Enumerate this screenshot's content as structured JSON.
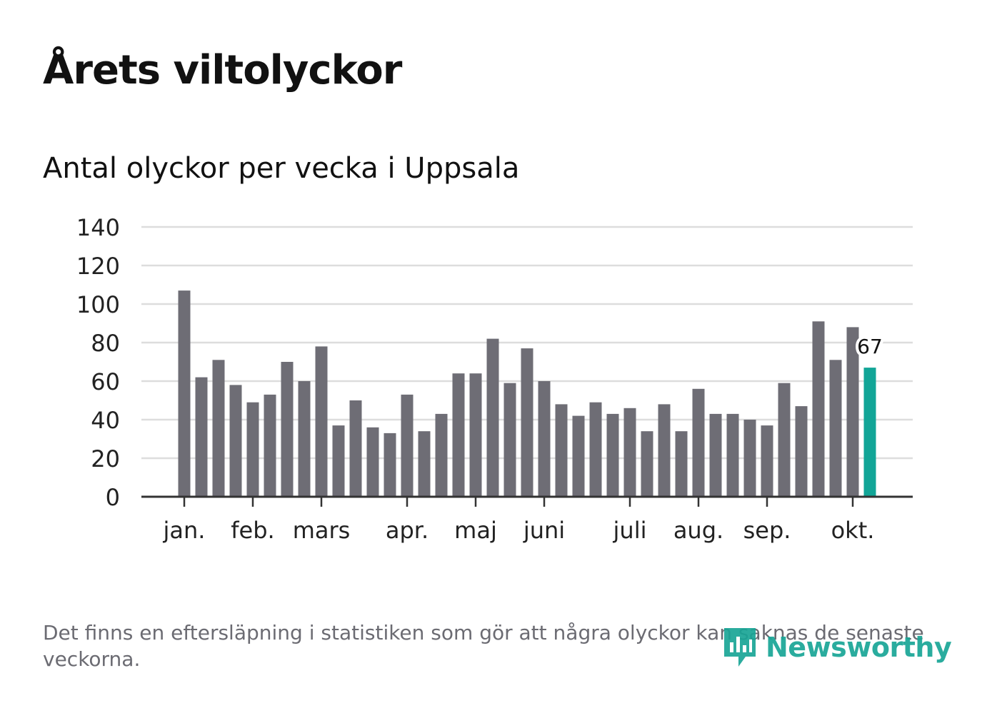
{
  "title": "Årets viltolyckor",
  "subtitle": "Antal olyckor per vecka i Uppsala",
  "note": "Det finns en eftersläpning i statistiken som gör att några olyckor kan saknas de senaste veckorna.",
  "logo": {
    "text": "Newsworthy",
    "icon": "bar-chart-speech-bubble-icon"
  },
  "colors": {
    "bar": "#6e6d75",
    "highlight": "#12a597",
    "grid": "#dddddd",
    "axis": "#333333",
    "tick_text": "#222222"
  },
  "chart_data": {
    "type": "bar",
    "title": "Antal olyckor per vecka i Uppsala",
    "xlabel": "",
    "ylabel": "",
    "ylim": [
      0,
      140
    ],
    "yticks": [
      "0",
      "20",
      "40",
      "60",
      "80",
      "100",
      "120",
      "140"
    ],
    "grid": true,
    "month_labels": [
      {
        "label": "jan.",
        "week_index": 0
      },
      {
        "label": "feb.",
        "week_index": 4
      },
      {
        "label": "mars",
        "week_index": 8
      },
      {
        "label": "apr.",
        "week_index": 13
      },
      {
        "label": "maj",
        "week_index": 17
      },
      {
        "label": "juni",
        "week_index": 21
      },
      {
        "label": "juli",
        "week_index": 26
      },
      {
        "label": "aug.",
        "week_index": 30
      },
      {
        "label": "sep.",
        "week_index": 34
      },
      {
        "label": "okt.",
        "week_index": 39
      }
    ],
    "values": [
      107,
      62,
      71,
      58,
      49,
      53,
      70,
      60,
      78,
      37,
      50,
      36,
      33,
      53,
      34,
      43,
      64,
      64,
      82,
      59,
      77,
      60,
      48,
      42,
      49,
      43,
      46,
      34,
      48,
      34,
      56,
      43,
      43,
      40,
      37,
      59,
      47,
      91,
      71,
      88,
      67
    ],
    "highlight_index": 40,
    "highlight_label": "67"
  }
}
